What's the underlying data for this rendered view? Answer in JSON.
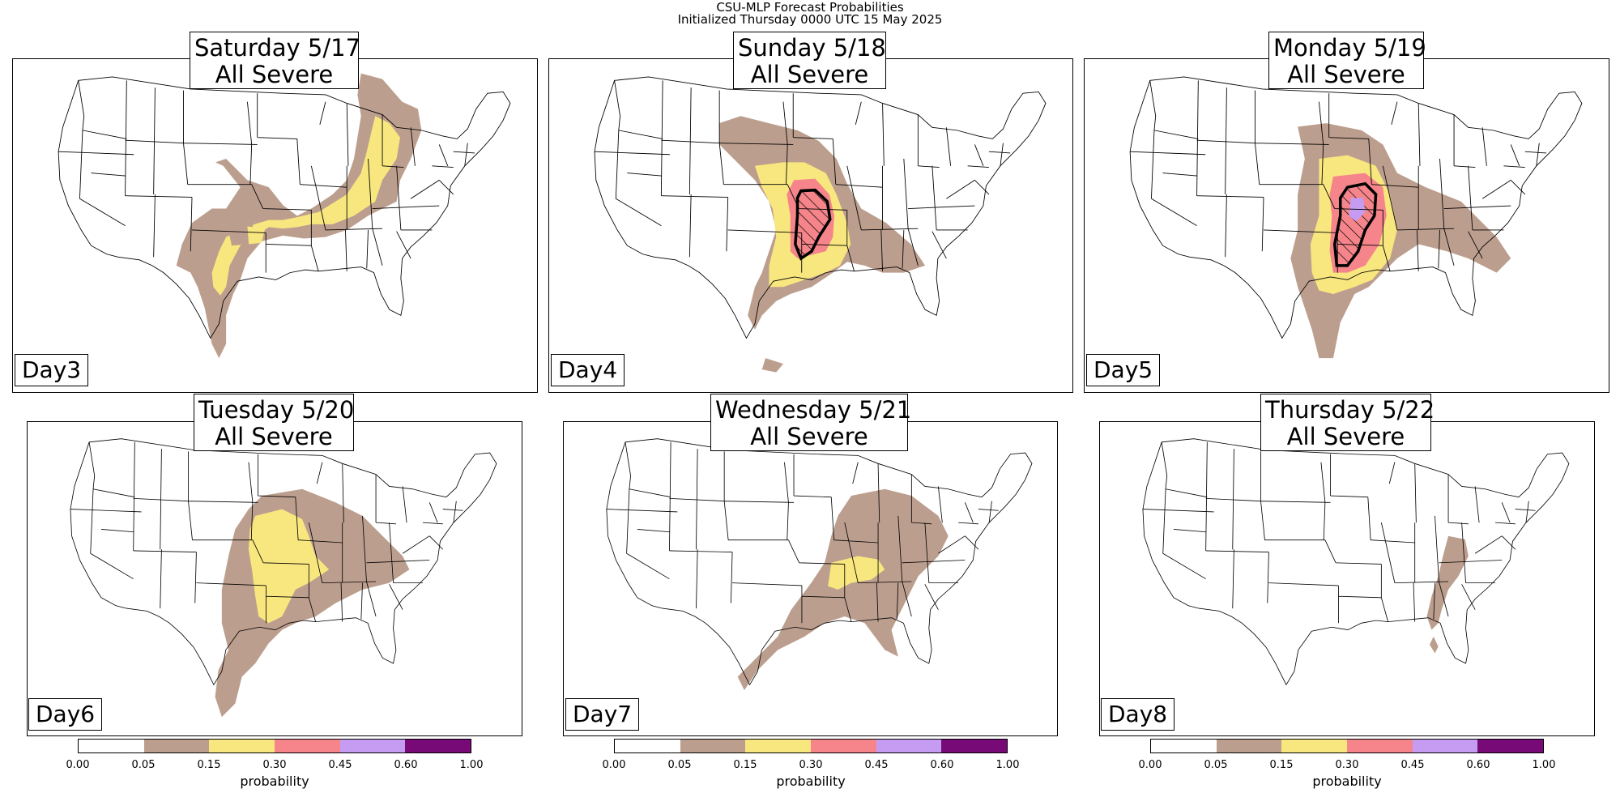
{
  "title": {
    "line1": "CSU-MLP Forecast Probabilities",
    "line2": "Initialized Thursday 0000 UTC 15 May 2025"
  },
  "colors": {
    "c005": "#bc9e8e",
    "c015": "#f8e77f",
    "c030": "#f5858a",
    "c045": "#c59cf2",
    "c060": "#780a78",
    "background": "#ffffff",
    "hatch": "#000000"
  },
  "panels": [
    {
      "title_line1": "Saturday 5/17",
      "title_line2": "All Severe",
      "day": "Day3",
      "region_icon": "severe-risk-region"
    },
    {
      "title_line1": "Sunday 5/18",
      "title_line2": "All Severe",
      "day": "Day4",
      "region_icon": "severe-risk-region"
    },
    {
      "title_line1": "Monday 5/19",
      "title_line2": "All Severe",
      "day": "Day5",
      "region_icon": "severe-risk-region"
    },
    {
      "title_line1": "Tuesday 5/20",
      "title_line2": "All Severe",
      "day": "Day6",
      "region_icon": "severe-risk-region"
    },
    {
      "title_line1": "Wednesday 5/21",
      "title_line2": "All Severe",
      "day": "Day7",
      "region_icon": "severe-risk-region"
    },
    {
      "title_line1": "Thursday 5/22",
      "title_line2": "All Severe",
      "day": "Day8",
      "region_icon": "severe-risk-region"
    }
  ],
  "colorbar": {
    "label": "probability",
    "ticks": [
      "0.00",
      "0.05",
      "0.15",
      "0.30",
      "0.45",
      "0.60",
      "1.00"
    ],
    "colors": [
      "#ffffff",
      "#bc9e8e",
      "#f8e77f",
      "#f5858a",
      "#c59cf2",
      "#780a78"
    ]
  }
}
